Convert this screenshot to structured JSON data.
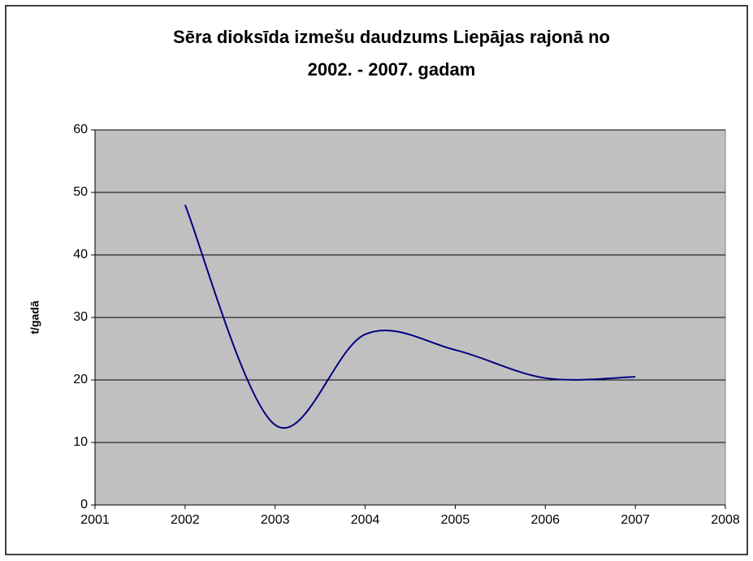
{
  "chart_data": {
    "type": "line",
    "title": [
      "Sēra dioksīda izmešu daudzums Liepājas rajonā no",
      "2002. - 2007. gadam"
    ],
    "y_label": "t/gadā",
    "x": [
      2002,
      2003,
      2004,
      2005,
      2006,
      2007
    ],
    "values": [
      48,
      12.8,
      27.3,
      24.8,
      20.3,
      20.5
    ],
    "color": "#000080",
    "smooth": true,
    "xlim": [
      2001,
      2008
    ],
    "xticks": [
      2001,
      2002,
      2003,
      2004,
      2005,
      2006,
      2007,
      2008
    ],
    "ylim": [
      0,
      60
    ],
    "yticks": [
      0,
      10,
      20,
      30,
      40,
      50,
      60
    ],
    "grid": true
  }
}
